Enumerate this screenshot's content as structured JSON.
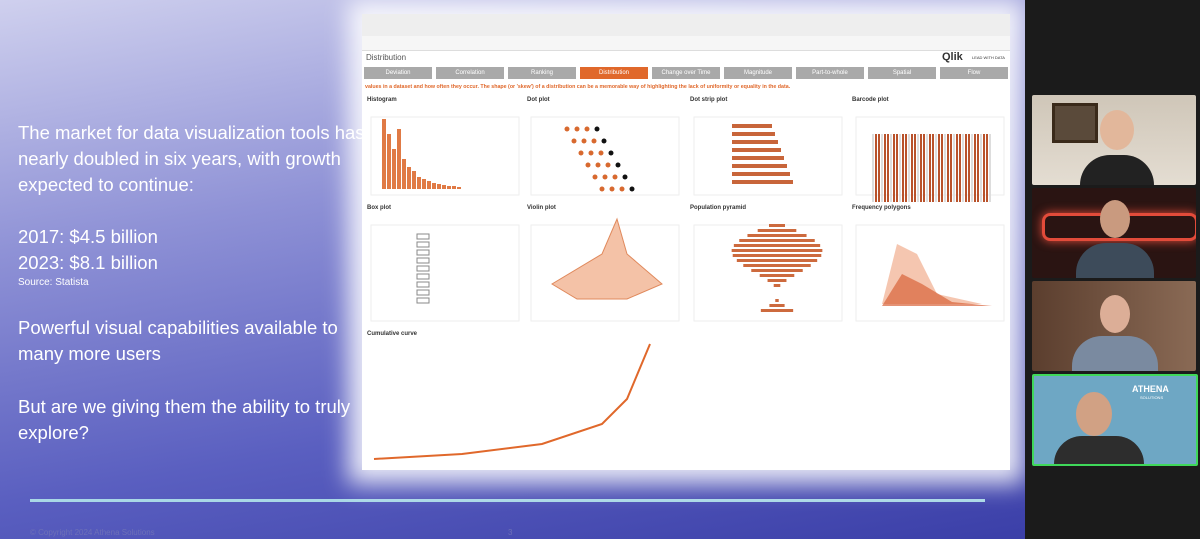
{
  "slide": {
    "paragraphs": [
      "The market for data visualization tools has nearly doubled in six years, with growth expected to continue:",
      "2017: $4.5 billion",
      "2023: $8.1 billion",
      "Powerful visual capabilities available to many more users",
      "But are we giving them the ability to truly explore?"
    ],
    "source": "Source: Statista",
    "footer": "© Copyright 2024 Athena Solutions",
    "page_number": "3"
  },
  "qlik": {
    "sheet": "Distribution",
    "brand": "Qlik",
    "tagline": "LEAD WITH DATA",
    "tabs": [
      "Deviation",
      "Correlation",
      "Ranking",
      "Distribution",
      "Change over Time",
      "Magnitude",
      "Part-to-whole",
      "Spatial",
      "Flow"
    ],
    "intro": "values in a dataset and how often they occur. The shape (or 'skew') of a distribution can be a memorable way of highlighting the lack of uniformity or equality in the data.",
    "panels": [
      "Histogram",
      "Dot plot",
      "Dot strip plot",
      "Barcode plot",
      "Box plot",
      "Violin plot",
      "Population pyramid",
      "Frequency polygons",
      "Cumulative curve"
    ]
  },
  "video": {
    "logo": "ATHENA",
    "logo_sub": "SOLUTIONS"
  }
}
